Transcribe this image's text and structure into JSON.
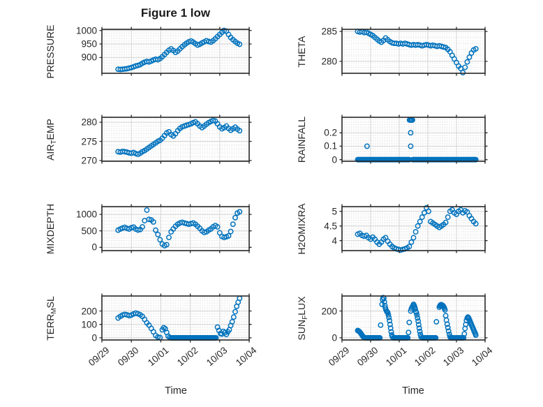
{
  "figure": {
    "title": "Figure 1 low"
  },
  "colors": {
    "marker": "#0072BD",
    "axis": "#262626",
    "grid_major": "#d2d2d2",
    "grid_minor": "#e0e0e0",
    "text": "#262626"
  },
  "x_axis": {
    "label": "Time",
    "tick_labels": [
      "09/29",
      "09/30",
      "10/01",
      "10/02",
      "10/03",
      "10/04"
    ],
    "range_days": [
      0,
      5
    ]
  },
  "chart_data": [
    {
      "id": "pressure",
      "type": "scatter",
      "label": "PRESSURE",
      "ylabel_parts": [
        [
          "PRESSURE",
          false
        ]
      ],
      "yticks": [
        900,
        950,
        1000
      ],
      "ylim": [
        842,
        1004
      ],
      "series": {
        "t_start": 0.55,
        "t_step": 0.075,
        "y": [
          857,
          856,
          857,
          858,
          859,
          861,
          863,
          866,
          869,
          871,
          874,
          879,
          883,
          886,
          884,
          887,
          891,
          894,
          892,
          896,
          903,
          911,
          919,
          927,
          932,
          926,
          919,
          924,
          932,
          940,
          947,
          953,
          958,
          961,
          957,
          951,
          946,
          949,
          954,
          958,
          962,
          959,
          957,
          962,
          969,
          977,
          985,
          993,
          1000,
          997,
          985,
          974,
          966,
          959,
          953,
          949
        ]
      }
    },
    {
      "id": "theta",
      "type": "scatter",
      "label": "THETA",
      "ylabel_parts": [
        [
          "THETA",
          false
        ]
      ],
      "yticks": [
        280,
        285
      ],
      "ylim": [
        278.0,
        285.35
      ],
      "series": {
        "t_start": 0.55,
        "t_step": 0.075,
        "y": [
          285.0,
          284.9,
          285.0,
          284.8,
          284.9,
          284.7,
          284.5,
          284.3,
          284.0,
          283.7,
          283.4,
          283.2,
          283.5,
          283.9,
          283.6,
          283.3,
          283.1,
          283.0,
          283.0,
          282.9,
          283.0,
          282.9,
          283.0,
          282.9,
          282.8,
          282.7,
          282.8,
          282.7,
          282.8,
          282.7,
          282.6,
          282.7,
          282.8,
          282.7,
          282.6,
          282.7,
          282.6,
          282.5,
          282.6,
          282.5,
          282.4,
          282.3,
          282.0,
          281.6,
          281.0,
          280.4,
          279.8,
          279.2,
          278.8,
          278.1,
          279.0,
          279.9,
          280.7,
          281.4,
          281.9,
          282.1
        ]
      }
    },
    {
      "id": "air-temp",
      "type": "scatter",
      "label": "AIR_TEMP",
      "ylabel_parts": [
        [
          "AIR",
          false
        ],
        [
          "T",
          true
        ],
        [
          "EMP",
          false
        ]
      ],
      "yticks": [
        270,
        275,
        280
      ],
      "ylim": [
        269.8,
        281.3
      ],
      "series": {
        "t_start": 0.55,
        "t_step": 0.075,
        "y": [
          272.3,
          272.2,
          272.4,
          272.3,
          272.2,
          272.0,
          271.9,
          272.1,
          271.8,
          271.6,
          271.9,
          272.3,
          272.6,
          273.0,
          273.4,
          273.8,
          274.2,
          274.6,
          275.0,
          275.3,
          275.8,
          276.5,
          277.2,
          277.5,
          276.8,
          276.4,
          277.0,
          277.8,
          278.4,
          278.8,
          279.0,
          279.2,
          279.4,
          279.6,
          279.9,
          280.1,
          279.6,
          279.0,
          278.6,
          279.0,
          279.5,
          279.9,
          280.2,
          280.5,
          280.3,
          279.6,
          278.8,
          278.3,
          278.6,
          279.0,
          278.4,
          277.9,
          278.3,
          278.7,
          278.2,
          277.8
        ]
      }
    },
    {
      "id": "rainfall",
      "type": "scatter",
      "label": "RAINFALL",
      "ylabel_parts": [
        [
          "RAINFALL",
          false
        ]
      ],
      "yticks": [
        0,
        0.1,
        0.2
      ],
      "ylim": [
        -0.012,
        0.315
      ],
      "zero_step": 0.025,
      "zero_runs": [
        [
          0.55,
          2.35
        ],
        [
          2.475,
          4.675
        ]
      ],
      "points": [
        [
          0.875,
          0.1
        ],
        [
          2.4,
          0.1
        ],
        [
          2.4,
          0.2
        ],
        [
          2.36,
          0.295
        ],
        [
          2.385,
          0.295
        ],
        [
          2.41,
          0.295
        ],
        [
          2.435,
          0.295
        ],
        [
          2.46,
          0.295
        ]
      ]
    },
    {
      "id": "mixdepth",
      "type": "scatter",
      "label": "MIXDEPTH",
      "ylabel_parts": [
        [
          "MIXDEPTH",
          false
        ]
      ],
      "yticks": [
        0,
        500,
        1000
      ],
      "ylim": [
        -100,
        1235
      ],
      "series": {
        "t_start": 0.55,
        "t_step": 0.075,
        "y": [
          520,
          555,
          585,
          605,
          575,
          555,
          595,
          615,
          555,
          525,
          540,
          620,
          810,
          1130,
          850,
          830,
          770,
          520,
          390,
          230,
          100,
          50,
          80,
          300,
          470,
          560,
          640,
          700,
          740,
          760,
          740,
          720,
          700,
          720,
          740,
          700,
          640,
          580,
          500,
          450,
          470,
          520,
          560,
          620,
          660,
          620,
          440,
          330,
          300,
          320,
          350,
          480,
          700,
          900,
          1040,
          1080
        ]
      }
    },
    {
      "id": "h2omixra",
      "type": "scatter",
      "label": "H2OMIXRA",
      "ylabel_parts": [
        [
          "H2OMIXRA",
          false
        ]
      ],
      "yticks": [
        4,
        4.5,
        5
      ],
      "ylim": [
        3.66,
        5.16
      ],
      "series": {
        "t_start": 0.55,
        "t_step": 0.075,
        "y": [
          4.22,
          4.25,
          4.18,
          4.15,
          4.18,
          4.1,
          4.05,
          4.12,
          4.05,
          3.95,
          3.88,
          3.95,
          4.05,
          4.1,
          3.98,
          3.88,
          3.8,
          3.75,
          3.72,
          3.7,
          3.68,
          3.7,
          3.72,
          3.75,
          3.8,
          3.95,
          4.1,
          4.3,
          4.5,
          4.65,
          4.8,
          4.95,
          5.12,
          5.0,
          4.65,
          4.6,
          4.55,
          4.5,
          4.45,
          4.5,
          4.55,
          4.62,
          4.8,
          5.0,
          5.05,
          4.95,
          4.9,
          5.0,
          5.05,
          4.95,
          5.02,
          4.98,
          4.85,
          4.75,
          4.65,
          4.58
        ]
      }
    },
    {
      "id": "terr-msl",
      "type": "scatter",
      "label": "TERR_MSL",
      "ylabel_parts": [
        [
          "TERR",
          false
        ],
        [
          "M",
          true
        ],
        [
          "SL",
          false
        ]
      ],
      "yticks": [
        0,
        100,
        200
      ],
      "ylim": [
        -16,
        312
      ],
      "zero_step": 0.025,
      "zero_runs": [
        [
          2.35,
          3.875
        ]
      ],
      "points": [
        [
          0.55,
          148
        ],
        [
          0.625,
          160
        ],
        [
          0.7,
          170
        ],
        [
          0.775,
          175
        ],
        [
          0.85,
          172
        ],
        [
          0.925,
          165
        ],
        [
          1.0,
          170
        ],
        [
          1.075,
          178
        ],
        [
          1.15,
          185
        ],
        [
          1.225,
          180
        ],
        [
          1.3,
          172
        ],
        [
          1.375,
          160
        ],
        [
          1.45,
          138
        ],
        [
          1.525,
          112
        ],
        [
          1.6,
          95
        ],
        [
          1.675,
          70
        ],
        [
          1.75,
          45
        ],
        [
          1.825,
          18
        ],
        [
          1.9,
          6
        ],
        [
          1.975,
          2
        ],
        [
          2.05,
          60
        ],
        [
          2.1,
          75
        ],
        [
          2.15,
          68
        ],
        [
          2.2,
          40
        ],
        [
          2.25,
          12
        ],
        [
          2.3,
          3
        ],
        [
          3.925,
          80
        ],
        [
          3.975,
          55
        ],
        [
          4.025,
          32
        ],
        [
          4.075,
          28
        ],
        [
          4.125,
          48
        ],
        [
          4.175,
          38
        ],
        [
          4.225,
          25
        ],
        [
          4.275,
          45
        ],
        [
          4.325,
          60
        ],
        [
          4.375,
          92
        ],
        [
          4.425,
          120
        ],
        [
          4.475,
          155
        ],
        [
          4.525,
          195
        ],
        [
          4.575,
          235
        ],
        [
          4.625,
          265
        ],
        [
          4.675,
          295
        ]
      ]
    },
    {
      "id": "sun-flux",
      "type": "scatter",
      "label": "SUN_FLUX",
      "ylabel_parts": [
        [
          "SUN",
          false
        ],
        [
          "F",
          true
        ],
        [
          "LUX",
          false
        ]
      ],
      "yticks": [
        0,
        200
      ],
      "ylim": [
        -16,
        312
      ],
      "zero_step": 0.025,
      "zero_runs": [
        [
          0.8,
          1.325
        ],
        [
          1.8,
          2.3
        ],
        [
          2.8,
          3.275
        ],
        [
          3.8,
          4.25
        ]
      ],
      "points": [
        [
          0.55,
          55
        ],
        [
          0.575,
          52
        ],
        [
          0.6,
          48
        ],
        [
          0.625,
          43
        ],
        [
          0.65,
          36
        ],
        [
          0.675,
          28
        ],
        [
          0.7,
          20
        ],
        [
          0.725,
          12
        ],
        [
          0.75,
          6
        ],
        [
          0.775,
          2
        ],
        [
          1.35,
          95
        ],
        [
          1.4,
          250
        ],
        [
          1.42,
          285
        ],
        [
          1.44,
          300
        ],
        [
          1.46,
          295
        ],
        [
          1.48,
          268
        ],
        [
          1.5,
          240
        ],
        [
          1.52,
          222
        ],
        [
          1.54,
          208
        ],
        [
          1.56,
          198
        ],
        [
          1.58,
          192
        ],
        [
          1.6,
          188
        ],
        [
          1.62,
          172
        ],
        [
          1.64,
          152
        ],
        [
          1.66,
          128
        ],
        [
          1.68,
          100
        ],
        [
          1.7,
          72
        ],
        [
          1.72,
          45
        ],
        [
          1.74,
          22
        ],
        [
          1.76,
          8
        ],
        [
          2.325,
          40
        ],
        [
          2.35,
          115
        ],
        [
          2.4,
          200
        ],
        [
          2.425,
          216
        ],
        [
          2.45,
          228
        ],
        [
          2.475,
          238
        ],
        [
          2.5,
          250
        ],
        [
          2.52,
          242
        ],
        [
          2.54,
          232
        ],
        [
          2.56,
          214
        ],
        [
          2.58,
          196
        ],
        [
          2.6,
          188
        ],
        [
          2.62,
          170
        ],
        [
          2.64,
          148
        ],
        [
          2.66,
          125
        ],
        [
          2.68,
          98
        ],
        [
          2.7,
          72
        ],
        [
          2.72,
          48
        ],
        [
          2.74,
          25
        ],
        [
          2.76,
          8
        ],
        [
          3.3,
          120
        ],
        [
          3.4,
          228
        ],
        [
          3.42,
          238
        ],
        [
          3.44,
          245
        ],
        [
          3.46,
          248
        ],
        [
          3.48,
          246
        ],
        [
          3.5,
          244
        ],
        [
          3.52,
          241
        ],
        [
          3.54,
          237
        ],
        [
          3.56,
          230
        ],
        [
          3.58,
          220
        ],
        [
          3.6,
          208
        ],
        [
          3.625,
          165
        ],
        [
          3.65,
          132
        ],
        [
          3.675,
          102
        ],
        [
          3.7,
          76
        ],
        [
          3.725,
          50
        ],
        [
          3.75,
          26
        ],
        [
          3.775,
          8
        ],
        [
          4.275,
          30
        ],
        [
          4.3,
          70
        ],
        [
          4.325,
          100
        ],
        [
          4.35,
          130
        ],
        [
          4.375,
          148
        ],
        [
          4.4,
          155
        ],
        [
          4.42,
          150
        ],
        [
          4.44,
          142
        ],
        [
          4.46,
          132
        ],
        [
          4.48,
          120
        ],
        [
          4.5,
          110
        ],
        [
          4.52,
          100
        ],
        [
          4.54,
          90
        ],
        [
          4.56,
          80
        ],
        [
          4.58,
          70
        ],
        [
          4.6,
          60
        ],
        [
          4.62,
          50
        ],
        [
          4.64,
          40
        ],
        [
          4.66,
          30
        ],
        [
          4.675,
          20
        ]
      ]
    }
  ]
}
